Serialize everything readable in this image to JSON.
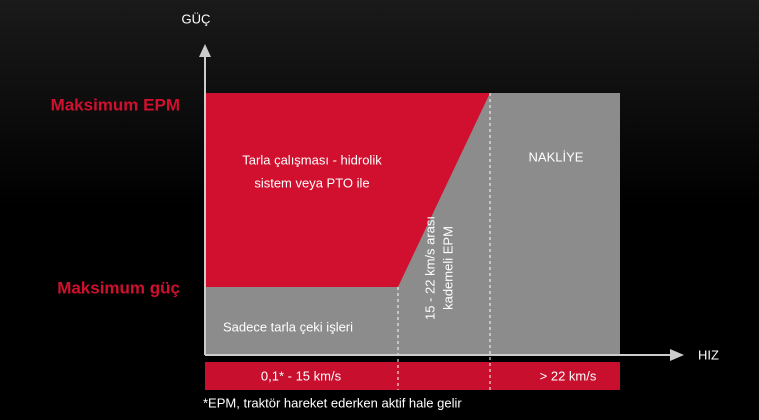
{
  "axes": {
    "y_label": "GÜÇ",
    "x_label": "HIZ"
  },
  "levels": {
    "top": "Maksimum EPM",
    "bottom": "Maksimum güç"
  },
  "regions": {
    "field_work": [
      "Tarla çalışması - hidrolik",
      "sistem veya PTO ile"
    ],
    "transport": "NAKLİYE",
    "traction": "Sadece tarla çeki işleri",
    "transition": [
      "15 - 22 km/s arası",
      "kademeli EPM"
    ]
  },
  "speeds": {
    "low": "0,1* - 15 km/s",
    "high": "> 22 km/s"
  },
  "footnote": "*EPM, traktör hareket ederken aktif hale gelir"
}
